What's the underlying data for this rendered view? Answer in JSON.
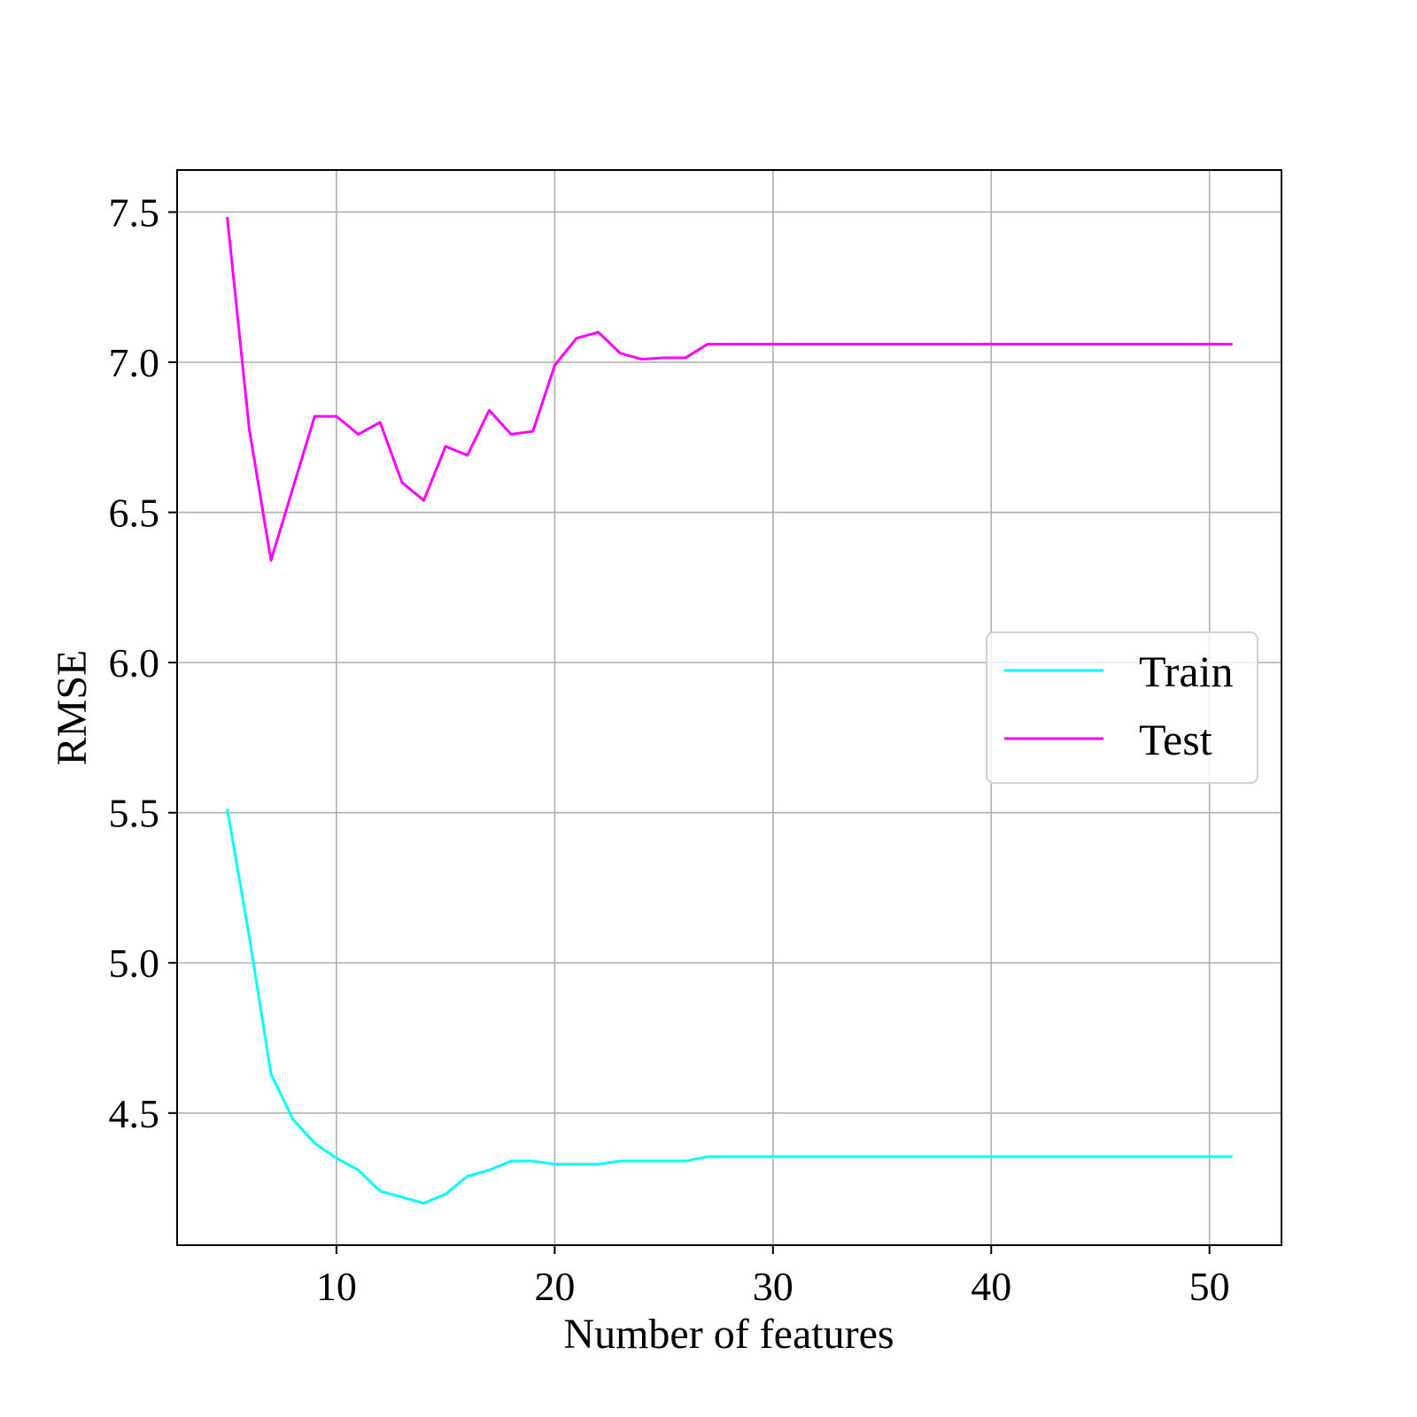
{
  "chart_data": {
    "type": "line",
    "xlabel": "Number of features",
    "ylabel": "RMSE",
    "xlim": [
      2.7,
      53.3
    ],
    "ylim": [
      4.06,
      7.64
    ],
    "xticks": [
      10,
      20,
      30,
      40,
      50
    ],
    "xtick_labels": [
      "10",
      "20",
      "30",
      "40",
      "50"
    ],
    "yticks": [
      4.5,
      5.0,
      5.5,
      6.0,
      6.5,
      7.0,
      7.5
    ],
    "ytick_labels": [
      "4.5",
      "5.0",
      "5.5",
      "6.0",
      "6.5",
      "7.0",
      "7.5"
    ],
    "grid": true,
    "legend_position": "center-right",
    "x": [
      5,
      6,
      7,
      8,
      9,
      10,
      11,
      12,
      13,
      14,
      15,
      16,
      17,
      18,
      19,
      20,
      21,
      22,
      23,
      24,
      25,
      26,
      27,
      28,
      29,
      30,
      31,
      32,
      33,
      34,
      35,
      36,
      37,
      38,
      39,
      40,
      41,
      42,
      43,
      44,
      45,
      46,
      47,
      48,
      49,
      50,
      51
    ],
    "series": [
      {
        "name": "Train",
        "color": "#00ffff",
        "values": [
          5.51,
          5.09,
          4.63,
          4.48,
          4.4,
          4.35,
          4.31,
          4.24,
          4.22,
          4.2,
          4.23,
          4.29,
          4.31,
          4.34,
          4.34,
          4.33,
          4.33,
          4.33,
          4.34,
          4.34,
          4.34,
          4.34,
          4.355,
          4.355,
          4.355,
          4.355,
          4.355,
          4.355,
          4.355,
          4.355,
          4.355,
          4.355,
          4.355,
          4.355,
          4.355,
          4.355,
          4.355,
          4.355,
          4.355,
          4.355,
          4.355,
          4.355,
          4.355,
          4.355,
          4.355,
          4.355,
          4.355
        ]
      },
      {
        "name": "Test",
        "color": "#ff00ff",
        "values": [
          7.48,
          6.78,
          6.34,
          6.58,
          6.82,
          6.82,
          6.76,
          6.8,
          6.6,
          6.54,
          6.72,
          6.69,
          6.84,
          6.76,
          6.77,
          6.99,
          7.08,
          7.1,
          7.03,
          7.01,
          7.015,
          7.015,
          7.06,
          7.06,
          7.06,
          7.06,
          7.06,
          7.06,
          7.06,
          7.06,
          7.06,
          7.06,
          7.06,
          7.06,
          7.06,
          7.06,
          7.06,
          7.06,
          7.06,
          7.06,
          7.06,
          7.06,
          7.06,
          7.06,
          7.06,
          7.06,
          7.06
        ]
      }
    ]
  }
}
